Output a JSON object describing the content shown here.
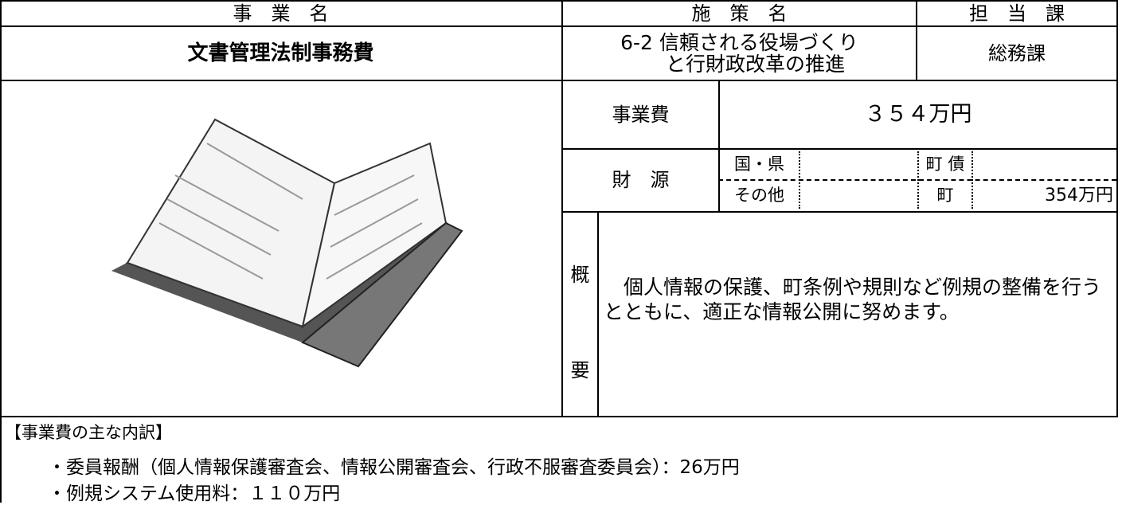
{
  "header": {
    "project_name_label": "事　業　名",
    "policy_label": "施　策　名",
    "department_label": "担　当　課"
  },
  "project": {
    "name": "文書管理法制事務費",
    "policy_lines": [
      "6-2 信頼される役場づくり",
      "と行財政改革の推進"
    ],
    "department": "総務課"
  },
  "budget": {
    "label": "事業費",
    "amount": "３５４万円"
  },
  "funding": {
    "label": "財　源",
    "national_prefectural": "国・県",
    "town_bond": "町 債",
    "other": "その他",
    "town": "町",
    "town_amount": "354万円"
  },
  "summary": {
    "label_top": "概",
    "label_bottom": "要",
    "text": "　個人情報の保護、町条例や規則など例規の整備を行うとともに、適正な情報公開に努めます。"
  },
  "breakdown": {
    "title": "【事業費の主な内訳】",
    "items": [
      "・委員報酬（個人情報保護審査会、情報公開審査会、行政不服審査委員会）：26万円",
      "・例規システム使用料：１１０万円"
    ]
  }
}
